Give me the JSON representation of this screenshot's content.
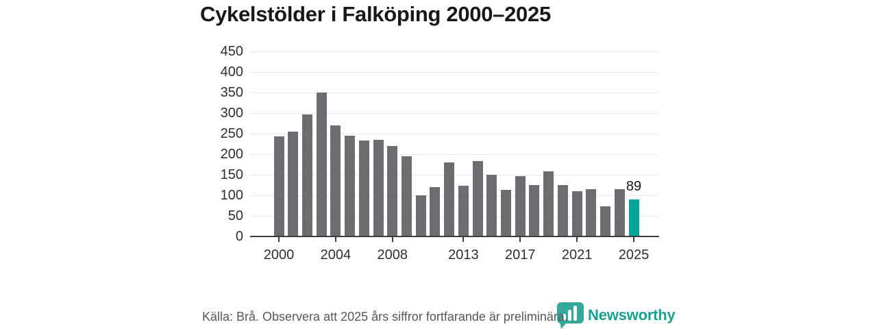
{
  "header": {
    "title": "Cykelstölder i Falköping 2000–2025"
  },
  "chart_data": {
    "type": "bar",
    "title": "Cykelstölder i Falköping 2000–2025",
    "x": [
      2000,
      2001,
      2002,
      2003,
      2004,
      2005,
      2006,
      2007,
      2008,
      2009,
      2010,
      2011,
      2012,
      2013,
      2014,
      2015,
      2016,
      2017,
      2018,
      2019,
      2020,
      2021,
      2022,
      2023,
      2024,
      2025
    ],
    "values": [
      242,
      253,
      295,
      349,
      268,
      243,
      231,
      233,
      219,
      193,
      98,
      118,
      179,
      121,
      182,
      148,
      111,
      145,
      124,
      156,
      124,
      108,
      113,
      71,
      113,
      89
    ],
    "bar_color": "#6c6c71",
    "highlight": {
      "year": 2025,
      "value": 89,
      "label": "89",
      "color": "#00a49c"
    },
    "y_ticks": [
      0,
      50,
      100,
      150,
      200,
      250,
      300,
      350,
      400,
      450
    ],
    "x_tick_labels": [
      "2000",
      "2004",
      "2008",
      "2013",
      "2017",
      "2021",
      "2025"
    ],
    "ylim": [
      0,
      450
    ],
    "grid": "horizontal",
    "legend": "none",
    "xlabel": "",
    "ylabel": ""
  },
  "footer": {
    "source_text": "Källa: Brå. Observera att 2025 års siffror fortfarande är preliminära.",
    "logo_text": "Newsworthy",
    "logo_color": "#18a091",
    "logo_icon": "bar-chart-speech-bubble-icon",
    "logo_icon_color": "#35a89c"
  }
}
